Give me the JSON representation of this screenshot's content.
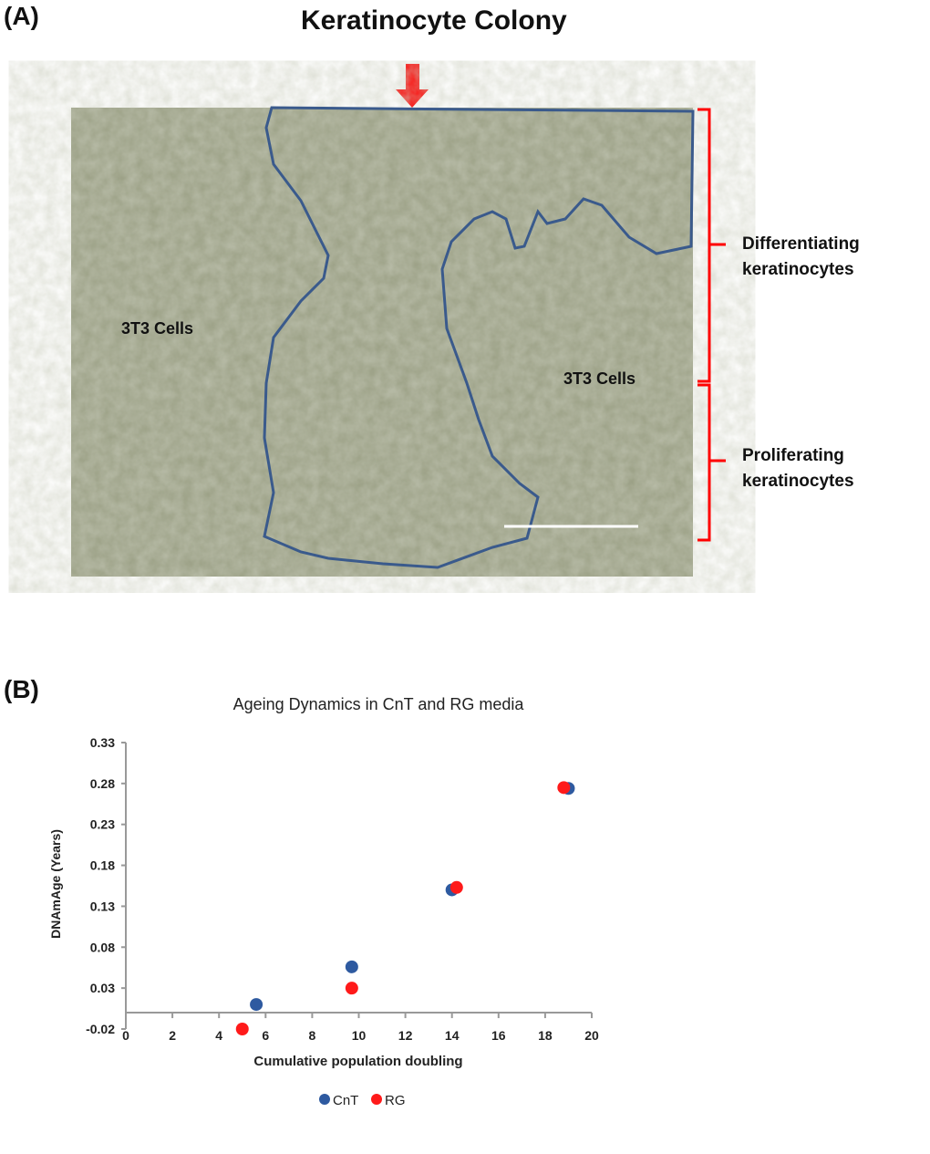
{
  "panel_a": {
    "label": "(A)",
    "title": "Keratinocyte Colony",
    "left_cells_label": "3T3 Cells",
    "right_cells_label": "3T3 Cells",
    "upper_bracket_label": [
      "Differentiating",
      "keratinocytes"
    ],
    "lower_bracket_label": [
      "Proliferating",
      "keratinocytes"
    ],
    "colors": {
      "arrow": "#ff0000",
      "bracket": "#ff0000",
      "outline": "#3a5a8c",
      "micrograph": "#9a9f84"
    }
  },
  "panel_b": {
    "label": "(B)"
  },
  "chart_data": {
    "type": "scatter",
    "title": "Ageing Dynamics in CnT and RG media",
    "xlabel": "Cumulative population doubling",
    "ylabel": "DNAmAge (Years)",
    "xlim": [
      0,
      20
    ],
    "ylim": [
      -0.02,
      0.33
    ],
    "x_ticks": [
      "0",
      "2",
      "4",
      "6",
      "8",
      "10",
      "12",
      "14",
      "16",
      "18",
      "20"
    ],
    "y_ticks": [
      "-0.02",
      "0.03",
      "0.08",
      "0.13",
      "0.18",
      "0.23",
      "0.28",
      "0.33"
    ],
    "grid": false,
    "legend": "bottom",
    "series": [
      {
        "name": "CnT",
        "color": "#2e5aa0",
        "x": [
          5.6,
          9.7,
          14.0,
          19.0
        ],
        "y": [
          0.01,
          0.056,
          0.15,
          0.274
        ]
      },
      {
        "name": "RG",
        "color": "#ff1a1a",
        "x": [
          5.0,
          9.7,
          14.2,
          18.8
        ],
        "y": [
          -0.02,
          0.03,
          0.153,
          0.275
        ]
      }
    ]
  }
}
